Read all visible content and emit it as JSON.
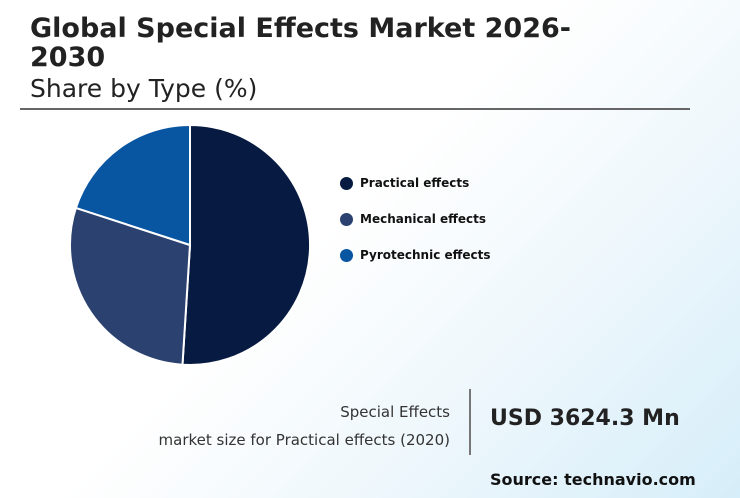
{
  "header": {
    "title": "Global Special Effects Market 2026-2030",
    "subtitle": "Share by Type (%)"
  },
  "chart_data": {
    "type": "pie",
    "categories": [
      "Practical effects",
      "Mechanical effects",
      "Pyrotechnic effects"
    ],
    "values": [
      51,
      29,
      20
    ],
    "colors": [
      "#071b42",
      "#2b4170",
      "#0855a2"
    ],
    "legend_position": "right"
  },
  "footer": {
    "market_label_line1": "Special Effects",
    "market_label_line2": "market size for Practical effects (2020)",
    "market_value": "USD 3624.3 Mn",
    "source": "Source: technavio.com"
  }
}
